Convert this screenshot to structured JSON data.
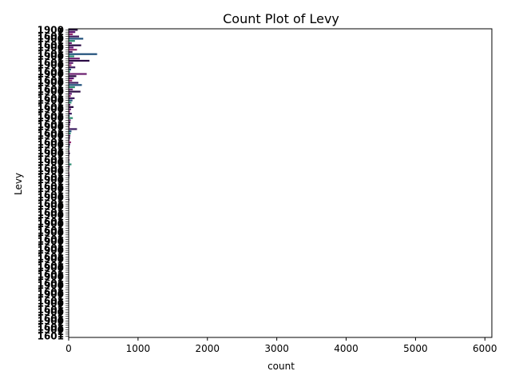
{
  "chart_data": {
    "type": "bar",
    "orientation": "horizontal",
    "title": "Count Plot of Levy",
    "xlabel": "count",
    "ylabel": "Levy",
    "xlim": [
      0,
      6100
    ],
    "xticks": [
      0,
      1000,
      2000,
      3000,
      4000,
      5000,
      6000
    ],
    "grid": false,
    "legend": "none",
    "palette": [
      "#2a0b44",
      "#5a1470",
      "#8f2a6e",
      "#3b1a5e",
      "#1f4f7a",
      "#2a8a6e",
      "#6a1d6f"
    ],
    "bar_counts": [
      130,
      95,
      60,
      150,
      210,
      90,
      45,
      180,
      70,
      120,
      55,
      410,
      80,
      160,
      300,
      65,
      40,
      95,
      35,
      20,
      260,
      110,
      75,
      50,
      140,
      190,
      90,
      60,
      170,
      45,
      30,
      85,
      55,
      40,
      25,
      70,
      35,
      20,
      45,
      15,
      60,
      30,
      25,
      20,
      15,
      120,
      40,
      30,
      25,
      20,
      15,
      35,
      20,
      15,
      10,
      12,
      18,
      10,
      8,
      12,
      10,
      40,
      15,
      8,
      6,
      10,
      12,
      8,
      6,
      5,
      8,
      6,
      5,
      8,
      6,
      5,
      4,
      10,
      6,
      4,
      5,
      4,
      3,
      6,
      5,
      4,
      3,
      4,
      3,
      2,
      3,
      4,
      3,
      2,
      3,
      2,
      4,
      3,
      2,
      2,
      3,
      2,
      2,
      3,
      2,
      2,
      1,
      2,
      2,
      1,
      2,
      1,
      2,
      1,
      1,
      2,
      1,
      1,
      2,
      1,
      1,
      1,
      1,
      2,
      1,
      1,
      1,
      1,
      1,
      1,
      1,
      1,
      1,
      1,
      1,
      1,
      1,
      1,
      1,
      1
    ],
    "category_labels_visible": [
      "1900",
      "1",
      "1",
      "1601"
    ]
  }
}
